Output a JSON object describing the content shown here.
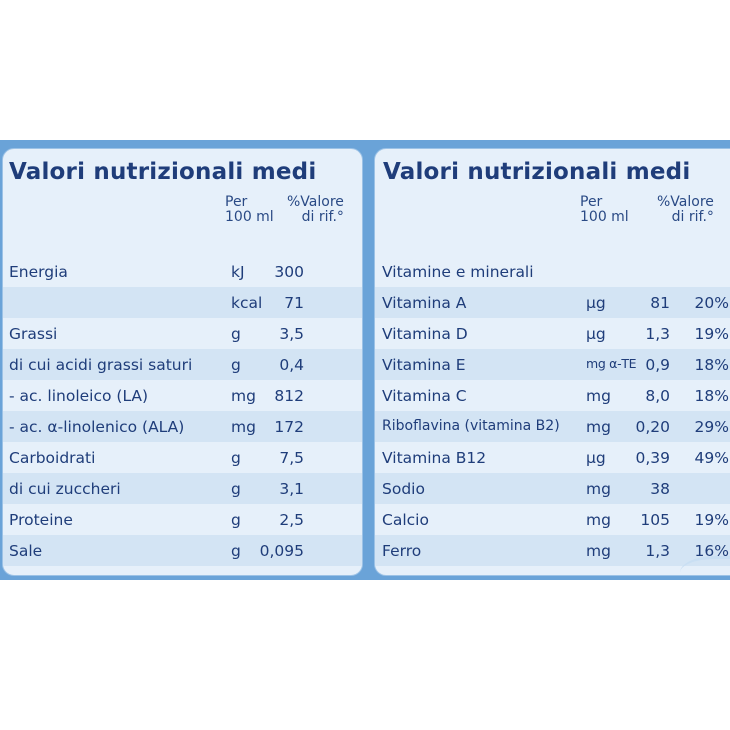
{
  "colors": {
    "band": "#6aa3d8",
    "panel": "#e6f0fa",
    "stripe": "#d3e4f4",
    "text": "#1f3d7a"
  },
  "left": {
    "title": "Valori nutrizionali medi",
    "col_per": [
      "Per",
      "100 ml"
    ],
    "col_ref": [
      "%Valore",
      "di rif.°"
    ],
    "rows": [
      {
        "name": "Energia",
        "unit": "kJ",
        "value": "300"
      },
      {
        "name": "",
        "unit": "kcal",
        "value": "71"
      },
      {
        "name": "Grassi",
        "unit": "g",
        "value": "3,5"
      },
      {
        "name": "di cui acidi grassi saturi",
        "unit": "g",
        "value": "0,4"
      },
      {
        "name": "- ac. linoleico (LA)",
        "unit": "mg",
        "value": "812"
      },
      {
        "name": "- ac. α-linolenico (ALA)",
        "unit": "mg",
        "value": "172"
      },
      {
        "name": "Carboidrati",
        "unit": "g",
        "value": "7,5"
      },
      {
        "name": "di cui zuccheri",
        "unit": "g",
        "value": "3,1"
      },
      {
        "name": "Proteine",
        "unit": "g",
        "value": "2,5"
      },
      {
        "name": "Sale",
        "unit": "g",
        "value": "0,095"
      }
    ]
  },
  "right": {
    "title": "Valori nutrizionali medi",
    "col_per": [
      "Per",
      "100 ml"
    ],
    "col_ref": [
      "%Valore",
      "di rif.°"
    ],
    "rows": [
      {
        "name": "Vitamine e minerali",
        "unit": "",
        "value": "",
        "ref": ""
      },
      {
        "name": "Vitamina A",
        "unit": "μg",
        "value": "81",
        "ref": "20%"
      },
      {
        "name": "Vitamina D",
        "unit": "μg",
        "value": "1,3",
        "ref": "19%"
      },
      {
        "name": "Vitamina E",
        "unit": "mg α-TE",
        "value": "0,9",
        "ref": "18%"
      },
      {
        "name": "Vitamina C",
        "unit": "mg",
        "value": "8,0",
        "ref": "18%"
      },
      {
        "name": "Riboflavina (vitamina B2)",
        "unit": "mg",
        "value": "0,20",
        "ref": "29%"
      },
      {
        "name": "Vitamina B12",
        "unit": "μg",
        "value": "0,39",
        "ref": "49%"
      },
      {
        "name": "Sodio",
        "unit": "mg",
        "value": "38",
        "ref": ""
      },
      {
        "name": "Calcio",
        "unit": "mg",
        "value": "105",
        "ref": "19%"
      },
      {
        "name": "Ferro",
        "unit": "mg",
        "value": "1,3",
        "ref": "16%"
      }
    ]
  }
}
